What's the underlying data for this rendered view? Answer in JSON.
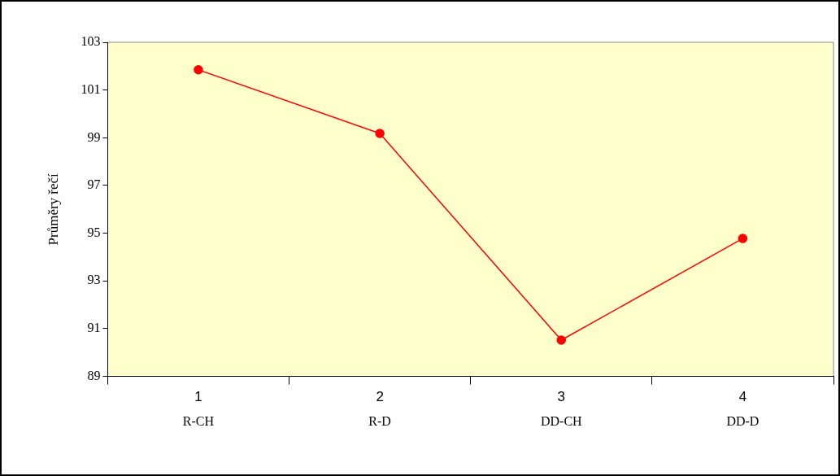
{
  "chart_data": {
    "type": "line",
    "ylabel": "Průměry řečí",
    "categories": [
      "1",
      "2",
      "3",
      "4"
    ],
    "series": [
      {
        "color": "#ff0000",
        "values": [
          101.85,
          99.18,
          90.52,
          94.78
        ]
      }
    ],
    "ylim": [
      89,
      103
    ],
    "yticks": [
      89,
      91,
      93,
      95,
      97,
      99,
      101,
      103
    ],
    "grid": false,
    "legend": false,
    "marker": "circle",
    "line_style": "solid",
    "annotations": [
      "R-CH",
      "R-D",
      "DD-CH",
      "DD-D"
    ]
  }
}
